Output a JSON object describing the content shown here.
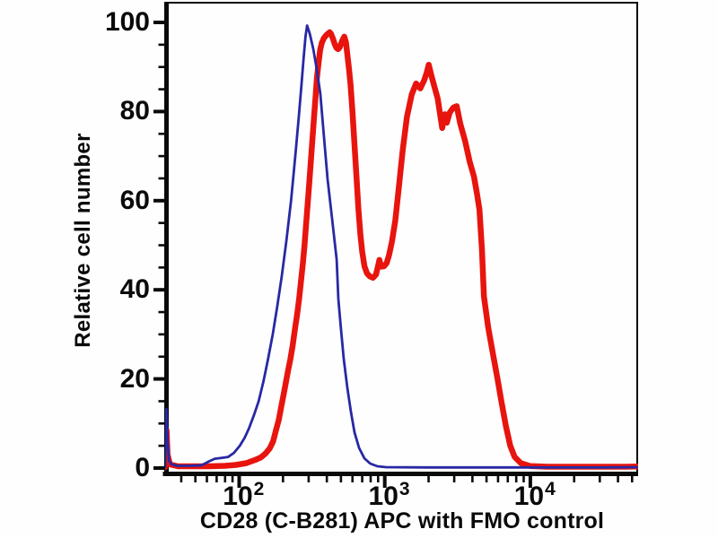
{
  "figure": {
    "x_axis_title": "CD28 (C-B281) APC with FMO control",
    "y_axis_title": "Relative cell number"
  },
  "chart_data": {
    "type": "line",
    "subtype": "flow-cytometry-histogram",
    "title": "",
    "xlabel": "CD28 (C-B281) APC with FMO control",
    "ylabel": "Relative cell number",
    "x_scale": "log10",
    "x_range": [
      31,
      55000
    ],
    "y_range": [
      0,
      100
    ],
    "y_ticks": [
      0,
      20,
      40,
      60,
      80,
      100
    ],
    "y_minor_tick_step": 5,
    "x_major_ticks": [
      {
        "value": 100,
        "label_base": "10",
        "label_exp": "2"
      },
      {
        "value": 1000,
        "label_base": "10",
        "label_exp": "3"
      },
      {
        "value": 10000,
        "label_base": "10",
        "label_exp": "4"
      }
    ],
    "grid": false,
    "legend": "none",
    "frame_color": "#0a0a0a",
    "series": [
      {
        "name": "CD28 (C-B281) APC",
        "slug": "cd28-apc-stained",
        "color": "#e8140e",
        "stroke_width": 6.5,
        "points": [
          [
            31,
            0.2
          ],
          [
            31.7,
            8.5
          ],
          [
            32.2,
            3
          ],
          [
            33.5,
            0.8
          ],
          [
            38,
            0.4
          ],
          [
            48,
            0.4
          ],
          [
            62,
            0.4
          ],
          [
            80,
            0.5
          ],
          [
            95,
            0.7
          ],
          [
            112,
            1.1
          ],
          [
            128,
            1.8
          ],
          [
            141,
            2.4
          ],
          [
            152,
            3.3
          ],
          [
            162,
            4.4
          ],
          [
            171,
            6.0
          ],
          [
            179,
            8.5
          ],
          [
            187,
            10.8
          ],
          [
            195,
            13.9
          ],
          [
            202,
            16.5
          ],
          [
            209,
            19.1
          ],
          [
            217,
            22.0
          ],
          [
            225,
            24.5
          ],
          [
            233,
            27.5
          ],
          [
            241,
            31.0
          ],
          [
            250,
            34.5
          ],
          [
            258,
            38.0
          ],
          [
            266,
            42.0
          ],
          [
            274,
            46.0
          ],
          [
            281,
            50.0
          ],
          [
            287,
            54.0
          ],
          [
            295,
            59.0
          ],
          [
            303,
            64.0
          ],
          [
            311,
            69.0
          ],
          [
            319,
            74.0
          ],
          [
            327,
            79.0
          ],
          [
            334,
            83.0
          ],
          [
            342,
            87.5
          ],
          [
            351,
            91.0
          ],
          [
            360,
            93.8
          ],
          [
            370,
            95.5
          ],
          [
            381,
            96.4
          ],
          [
            393,
            97.0
          ],
          [
            405,
            97.4
          ],
          [
            418,
            97.8
          ],
          [
            428,
            97.4
          ],
          [
            440,
            96.4
          ],
          [
            452,
            95.2
          ],
          [
            465,
            94.3
          ],
          [
            478,
            94.0
          ],
          [
            490,
            94.4
          ],
          [
            503,
            95.4
          ],
          [
            515,
            96.2
          ],
          [
            527,
            96.8
          ],
          [
            541,
            95.6
          ],
          [
            555,
            92.5
          ],
          [
            568,
            89.5
          ],
          [
            582,
            86.0
          ],
          [
            600,
            80.0
          ],
          [
            620,
            72.5
          ],
          [
            640,
            65.0
          ],
          [
            660,
            58.0
          ],
          [
            680,
            52.5
          ],
          [
            700,
            48.5
          ],
          [
            725,
            45.3
          ],
          [
            755,
            43.7
          ],
          [
            790,
            43.0
          ],
          [
            830,
            42.7
          ],
          [
            870,
            43.4
          ],
          [
            900,
            45.4
          ],
          [
            918,
            46.7
          ],
          [
            948,
            45.2
          ],
          [
            990,
            45.3
          ],
          [
            1030,
            46.0
          ],
          [
            1070,
            47.8
          ],
          [
            1120,
            50.8
          ],
          [
            1180,
            55.5
          ],
          [
            1250,
            63.0
          ],
          [
            1330,
            71.5
          ],
          [
            1420,
            78.8
          ],
          [
            1530,
            83.8
          ],
          [
            1640,
            86.3
          ],
          [
            1755,
            85.2
          ],
          [
            1865,
            87.0
          ],
          [
            1940,
            88.7
          ],
          [
            2005,
            90.5
          ],
          [
            2100,
            87.8
          ],
          [
            2180,
            85.9
          ],
          [
            2310,
            82.9
          ],
          [
            2480,
            76.3
          ],
          [
            2590,
            79.4
          ],
          [
            2665,
            77.5
          ],
          [
            2800,
            79.8
          ],
          [
            2960,
            80.9
          ],
          [
            3120,
            81.2
          ],
          [
            3300,
            77.3
          ],
          [
            3560,
            73.4
          ],
          [
            3830,
            68.8
          ],
          [
            4100,
            65.4
          ],
          [
            4300,
            61.5
          ],
          [
            4470,
            58.0
          ],
          [
            4650,
            49.0
          ],
          [
            4800,
            38.5
          ],
          [
            5140,
            31.5
          ],
          [
            5510,
            26.0
          ],
          [
            5910,
            20.5
          ],
          [
            6330,
            14.9
          ],
          [
            6790,
            9.5
          ],
          [
            7280,
            5.0
          ],
          [
            7800,
            2.5
          ],
          [
            8600,
            1.1
          ],
          [
            10000,
            0.45
          ],
          [
            13000,
            0.3
          ],
          [
            20000,
            0.3
          ],
          [
            32000,
            0.3
          ],
          [
            45000,
            0.3
          ],
          [
            55000,
            0.35
          ]
        ]
      },
      {
        "name": "FMO control",
        "slug": "fmo-control",
        "color": "#2828a4",
        "stroke_width": 2.8,
        "points": [
          [
            31,
            0.3
          ],
          [
            31.6,
            13.2
          ],
          [
            32.2,
            6.0
          ],
          [
            33,
            1.6
          ],
          [
            34.5,
            0.8
          ],
          [
            38,
            0.5
          ],
          [
            45,
            0.5
          ],
          [
            55,
            0.6
          ],
          [
            63,
            1.6
          ],
          [
            68,
            2.1
          ],
          [
            76,
            2.3
          ],
          [
            84,
            2.5
          ],
          [
            92,
            3.4
          ],
          [
            101,
            5.0
          ],
          [
            109,
            6.8
          ],
          [
            117,
            9.0
          ],
          [
            126,
            11.8
          ],
          [
            136,
            15.0
          ],
          [
            147,
            19.5
          ],
          [
            158,
            24.5
          ],
          [
            170,
            30.0
          ],
          [
            182,
            36.0
          ],
          [
            196,
            43.0
          ],
          [
            211,
            51.0
          ],
          [
            227,
            60.0
          ],
          [
            243,
            70.0
          ],
          [
            257,
            79.0
          ],
          [
            268,
            86.0
          ],
          [
            278,
            92.5
          ],
          [
            286,
            97.0
          ],
          [
            293,
            99.3
          ],
          [
            305,
            97.5
          ],
          [
            323,
            94.0
          ],
          [
            341,
            89.5
          ],
          [
            361,
            84.0
          ],
          [
            382,
            74.5
          ],
          [
            405,
            64.8
          ],
          [
            435,
            55.8
          ],
          [
            467,
            46.8
          ],
          [
            480,
            37.9
          ],
          [
            500,
            31.2
          ],
          [
            523,
            24.5
          ],
          [
            553,
            18.0
          ],
          [
            586,
            12.5
          ],
          [
            620,
            8.0
          ],
          [
            666,
            4.5
          ],
          [
            724,
            2.2
          ],
          [
            795,
            1.0
          ],
          [
            890,
            0.4
          ],
          [
            1020,
            0.2
          ],
          [
            2000,
            0.15
          ],
          [
            5000,
            0.15
          ],
          [
            12000,
            0.15
          ],
          [
            30000,
            0.15
          ],
          [
            55000,
            0.2
          ]
        ]
      }
    ]
  }
}
